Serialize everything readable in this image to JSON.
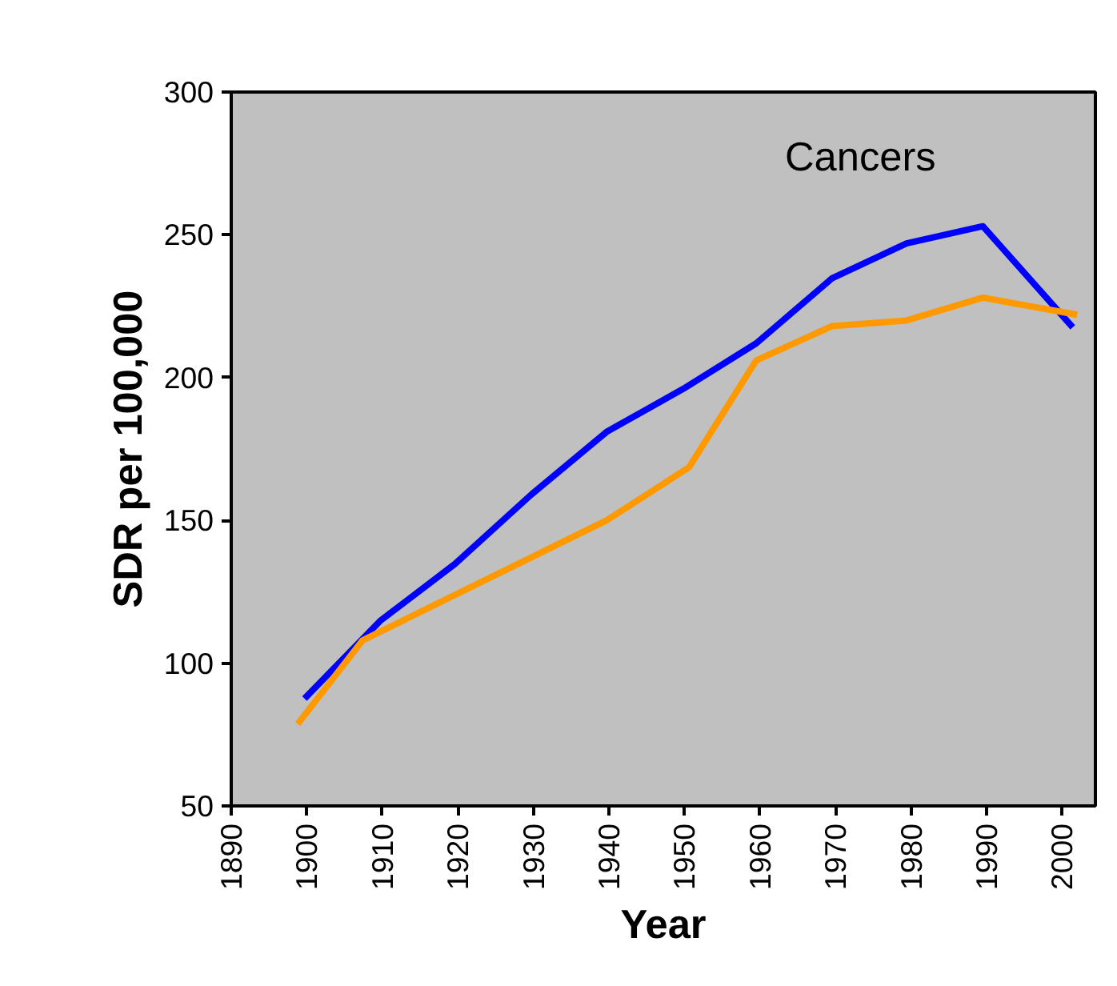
{
  "chart_data": {
    "type": "line",
    "title": "Cancers",
    "xlabel": "Year",
    "ylabel": "SDR per 100,000",
    "xlim": [
      1890,
      2004.4
    ],
    "xticks": [
      1890,
      1900,
      1910,
      1920,
      1930,
      1940,
      1950,
      1960,
      1970,
      1980,
      1990,
      2000
    ],
    "ylim": [
      50,
      300
    ],
    "yticks": [
      50,
      100,
      150,
      200,
      250,
      300
    ],
    "grid": false,
    "marker": "none",
    "line_style": "solid",
    "series": [
      {
        "color": "#0000ff",
        "x": [
          1899.7,
          1909.8,
          1919.6,
          1929.7,
          1939.7,
          1949.8,
          1959.5,
          1969.5,
          1979.4,
          1989.5,
          2001.4
        ],
        "values": [
          87.6,
          115,
          134.7,
          159,
          181,
          196,
          212,
          234.7,
          247,
          253,
          217.6
        ]
      },
      {
        "color": "#ff9900",
        "x": [
          1898.8,
          1907.4,
          1939.7,
          1950.6,
          1959.5,
          1969.5,
          1979.4,
          1989.5,
          2002
        ],
        "values": [
          78.7,
          108,
          150,
          168.6,
          206,
          218,
          220,
          228,
          222
        ]
      }
    ]
  }
}
